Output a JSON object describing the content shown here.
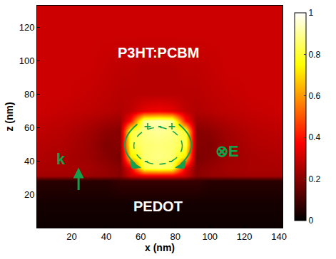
{
  "chart_data": {
    "type": "heatmap",
    "xlabel": "x (nm)",
    "ylabel": "z (nm)",
    "x": [
      0,
      15,
      30,
      40,
      48,
      54,
      62,
      70,
      78,
      86,
      92,
      100,
      110,
      125,
      142
    ],
    "y": [
      0,
      15,
      28,
      31,
      36,
      42,
      50,
      58,
      64,
      70,
      80,
      95,
      115,
      133
    ],
    "cells": [
      [
        0.02,
        0.02,
        0.02,
        0.02,
        0.02,
        0.02,
        0.02,
        0.02,
        0.02,
        0.02,
        0.02,
        0.02,
        0.02,
        0.02,
        0.02
      ],
      [
        0.03,
        0.03,
        0.03,
        0.03,
        0.03,
        0.03,
        0.03,
        0.03,
        0.03,
        0.03,
        0.03,
        0.03,
        0.03,
        0.03,
        0.03
      ],
      [
        0.06,
        0.06,
        0.06,
        0.06,
        0.08,
        0.08,
        0.08,
        0.08,
        0.08,
        0.08,
        0.08,
        0.06,
        0.06,
        0.06,
        0.06
      ],
      [
        0.24,
        0.24,
        0.23,
        0.22,
        0.2,
        0.3,
        0.35,
        0.35,
        0.35,
        0.3,
        0.2,
        0.22,
        0.23,
        0.24,
        0.24
      ],
      [
        0.25,
        0.25,
        0.24,
        0.22,
        0.2,
        0.35,
        0.82,
        0.85,
        0.82,
        0.35,
        0.2,
        0.22,
        0.24,
        0.25,
        0.25
      ],
      [
        0.26,
        0.25,
        0.23,
        0.2,
        0.18,
        0.7,
        0.86,
        0.88,
        0.86,
        0.7,
        0.18,
        0.2,
        0.23,
        0.25,
        0.26
      ],
      [
        0.27,
        0.26,
        0.23,
        0.19,
        0.2,
        0.82,
        0.86,
        0.87,
        0.86,
        0.82,
        0.2,
        0.19,
        0.23,
        0.26,
        0.27
      ],
      [
        0.28,
        0.27,
        0.24,
        0.21,
        0.2,
        0.8,
        0.88,
        0.9,
        0.88,
        0.8,
        0.2,
        0.21,
        0.24,
        0.27,
        0.28
      ],
      [
        0.29,
        0.28,
        0.26,
        0.24,
        0.23,
        0.4,
        0.9,
        0.93,
        0.9,
        0.4,
        0.23,
        0.24,
        0.26,
        0.28,
        0.29
      ],
      [
        0.3,
        0.29,
        0.28,
        0.27,
        0.26,
        0.28,
        0.34,
        0.36,
        0.34,
        0.28,
        0.26,
        0.27,
        0.28,
        0.29,
        0.3
      ],
      [
        0.3,
        0.3,
        0.29,
        0.28,
        0.27,
        0.27,
        0.27,
        0.27,
        0.27,
        0.27,
        0.27,
        0.28,
        0.29,
        0.3,
        0.3
      ],
      [
        0.3,
        0.3,
        0.3,
        0.29,
        0.28,
        0.28,
        0.27,
        0.27,
        0.27,
        0.28,
        0.28,
        0.29,
        0.3,
        0.3,
        0.3
      ],
      [
        0.3,
        0.3,
        0.3,
        0.3,
        0.3,
        0.3,
        0.3,
        0.3,
        0.3,
        0.3,
        0.3,
        0.3,
        0.3,
        0.3,
        0.3
      ],
      [
        0.3,
        0.3,
        0.3,
        0.3,
        0.3,
        0.3,
        0.3,
        0.3,
        0.3,
        0.3,
        0.3,
        0.3,
        0.3,
        0.3,
        0.3
      ]
    ],
    "xlim": [
      0,
      142
    ],
    "ylim": [
      0,
      133
    ],
    "xticks": [
      20,
      40,
      60,
      80,
      100,
      120,
      140
    ],
    "yticks": [
      20,
      40,
      60,
      80,
      100,
      120
    ],
    "colorbar": {
      "range": [
        0,
        1
      ],
      "ticks": [
        0,
        0.2,
        0.4,
        0.6,
        0.8,
        1
      ]
    },
    "annotations": [
      {
        "text": "P3HT:PCBM",
        "x": 70,
        "y": 105,
        "color": "#ffffff"
      },
      {
        "text": "PEDOT",
        "x": 70,
        "y": 13,
        "color": "#ffffff"
      },
      {
        "text": "k",
        "x": 14,
        "y": 41,
        "color": "#14a04a"
      },
      {
        "text": "⊗E",
        "x": 110,
        "y": 46,
        "color": "#14a04a"
      },
      {
        "text": "+",
        "x": 64,
        "y": 61,
        "color": "#14a04a"
      },
      {
        "text": "-",
        "x": 71,
        "y": 61,
        "color": "#14a04a"
      },
      {
        "text": "+",
        "x": 78,
        "y": 61,
        "color": "#14a04a"
      },
      {
        "text": "-",
        "x": 63,
        "y": 40,
        "color": "#14a04a"
      },
      {
        "text": "-",
        "x": 77,
        "y": 40,
        "color": "#14a04a"
      }
    ]
  }
}
